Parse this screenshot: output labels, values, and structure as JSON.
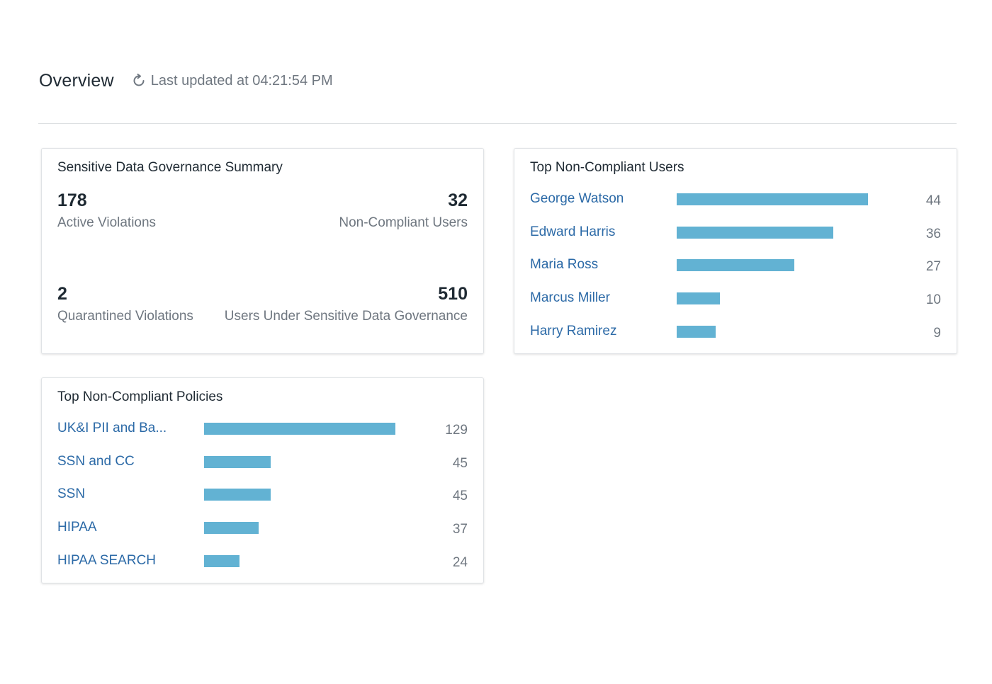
{
  "header": {
    "title": "Overview",
    "refresh_icon": "refresh-icon",
    "last_updated": "Last updated at 04:21:54 PM"
  },
  "summary": {
    "title": "Sensitive Data Governance Summary",
    "metrics": [
      {
        "value": "178",
        "label": "Active Violations"
      },
      {
        "value": "32",
        "label": "Non-Compliant Users"
      },
      {
        "value": "2",
        "label": "Quarantined Violations"
      },
      {
        "value": "510",
        "label": "Users Under Sensitive Data Governance"
      }
    ]
  },
  "top_users": {
    "title": "Top Non-Compliant Users",
    "max": 44,
    "items": [
      {
        "name": "George Watson",
        "count": 44
      },
      {
        "name": "Edward Harris",
        "count": 36
      },
      {
        "name": "Maria Ross",
        "count": 27
      },
      {
        "name": "Marcus Miller",
        "count": 10
      },
      {
        "name": "Harry Ramirez",
        "count": 9
      }
    ]
  },
  "top_policies": {
    "title": "Top Non-Compliant Policies",
    "max": 129,
    "items": [
      {
        "name": "UK&I PII and Ba...",
        "count": 129
      },
      {
        "name": "SSN and CC",
        "count": 45
      },
      {
        "name": "SSN",
        "count": 45
      },
      {
        "name": "HIPAA",
        "count": 37
      },
      {
        "name": "HIPAA SEARCH",
        "count": 24
      }
    ]
  },
  "colors": {
    "bar": "#62b2d3",
    "link": "#2c6aa7",
    "muted_text": "#6f7780"
  }
}
